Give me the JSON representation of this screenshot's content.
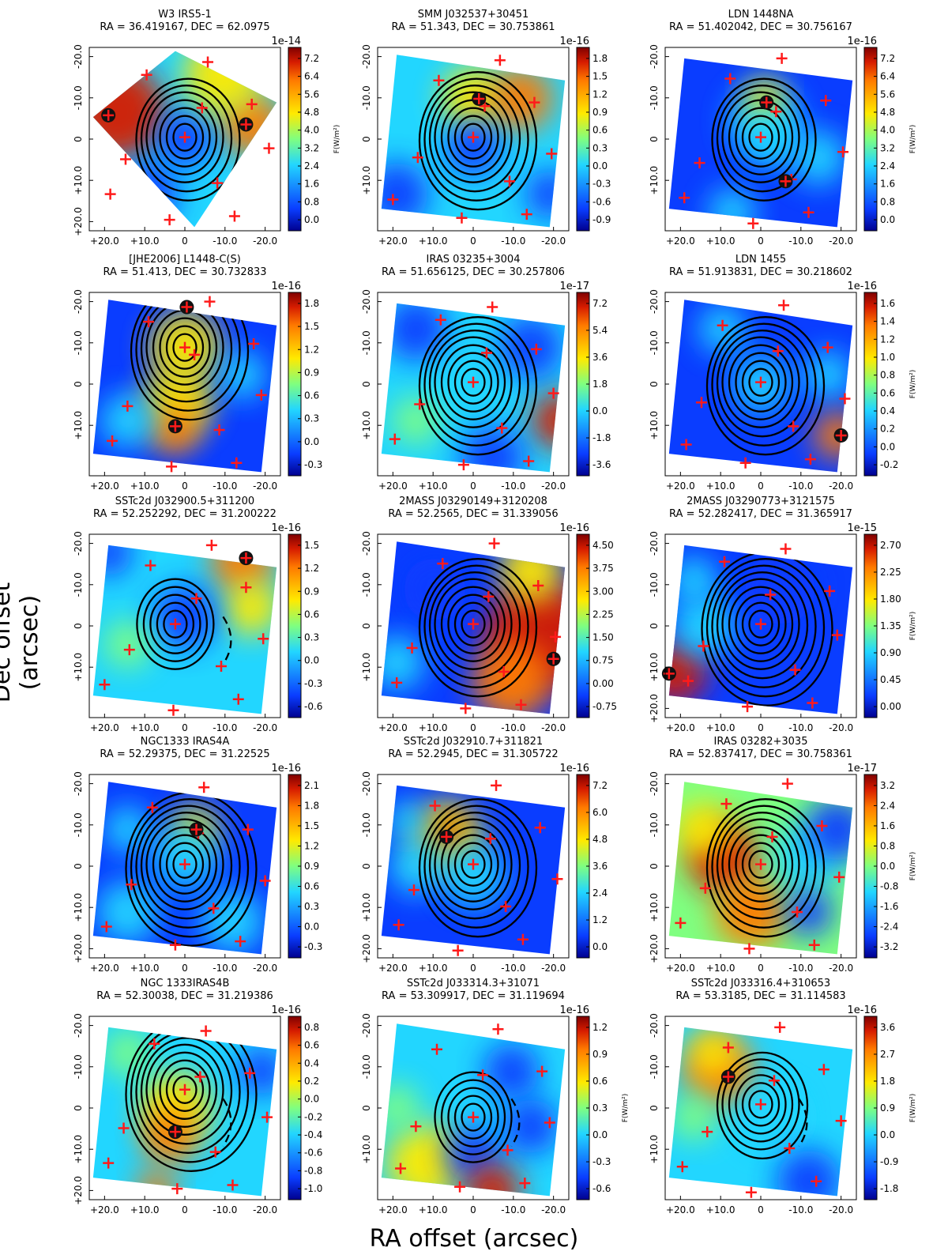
{
  "figure": {
    "xlabel": "RA offset (arcsec)",
    "ylabel": "Dec offset (arcsec)",
    "cbar_unit_label": "F(W/m²)"
  },
  "colors": {
    "blue_dark": "#00008f",
    "blue": "#0a3dff",
    "cyan": "#22d6ff",
    "green": "#7fff80",
    "yellow": "#ffea00",
    "orange": "#ff7a00",
    "red": "#d61c00",
    "red_dark": "#7f0000",
    "marker": "#ff1a1a",
    "contour": "#000000"
  },
  "chart_data": [
    {
      "type": "heatmap",
      "title": "W3 IRS5-1",
      "subtitle": "RA = 36.419167, DEC = 62.0975",
      "scale": "1e-14",
      "cbar_ticks": [
        "0.0",
        "0.8",
        "1.6",
        "2.4",
        "3.2",
        "4.0",
        "4.8",
        "5.6",
        "6.4",
        "7.2"
      ],
      "x_ticks": [
        "+20.0",
        "+10.0",
        "0",
        "-10.0",
        "-20.0"
      ],
      "y_ticks": [
        "-20.0",
        "-10.0",
        "0",
        "+10.0",
        "+20.0"
      ],
      "xlim": [
        25,
        -25
      ],
      "ylim": [
        -25,
        25
      ],
      "cbar_label": "F(W/m²)"
    },
    {
      "type": "heatmap",
      "title": "SMM J032537+30451",
      "subtitle": "RA = 51.343, DEC = 30.753861",
      "scale": "1e-16",
      "cbar_ticks": [
        "-0.9",
        "-0.6",
        "-0.3",
        "0.0",
        "0.3",
        "0.6",
        "0.9",
        "1.2",
        "1.5",
        "1.8"
      ],
      "x_ticks": [
        "+20.0",
        "+10.0",
        "0",
        "-10.0",
        "-20.0"
      ],
      "y_ticks": [
        "-20.0",
        "-10.0",
        "0",
        "+10.0"
      ],
      "xlim": [
        22,
        -22
      ],
      "ylim": [
        -20,
        20
      ],
      "cbar_label": ""
    },
    {
      "type": "heatmap",
      "title": "LDN 1448NA",
      "subtitle": "RA = 51.402042, DEC = 30.756167",
      "scale": "1e-16",
      "cbar_ticks": [
        "0.0",
        "0.8",
        "1.6",
        "2.4",
        "3.2",
        "4.0",
        "4.8",
        "5.6",
        "6.4",
        "7.2"
      ],
      "x_ticks": [
        "+20.0",
        "+10.0",
        "0",
        "-10.0",
        "-20.0"
      ],
      "y_ticks": [
        "-20.0",
        "-10.0",
        "0",
        "+10.0"
      ],
      "xlim": [
        22,
        -22
      ],
      "ylim": [
        -20,
        20
      ],
      "cbar_label": "F(W/m²)"
    },
    {
      "type": "heatmap",
      "title": "[JHE2006] L1448-C(S)",
      "subtitle": "RA = 51.413, DEC = 30.732833",
      "scale": "1e-16",
      "cbar_ticks": [
        "-0.3",
        "0.0",
        "0.3",
        "0.6",
        "0.9",
        "1.2",
        "1.5",
        "1.8"
      ],
      "x_ticks": [
        "+20.0",
        "+10.0",
        "0",
        "-10.0",
        "-20.0"
      ],
      "y_ticks": [
        "-20.0",
        "-10.0",
        "0",
        "+10.0"
      ],
      "xlim": [
        22,
        -22
      ],
      "ylim": [
        -20,
        20
      ],
      "cbar_label": ""
    },
    {
      "type": "heatmap",
      "title": "IRAS 03235+3004",
      "subtitle": "RA = 51.656125, DEC = 30.257806",
      "scale": "1e-17",
      "cbar_ticks": [
        "-3.6",
        "-1.8",
        "0.0",
        "1.8",
        "3.6",
        "5.4",
        "7.2"
      ],
      "x_ticks": [
        "+20.0",
        "+10.0",
        "0",
        "-10.0",
        "-20.0"
      ],
      "y_ticks": [
        "-20.0",
        "-10.0",
        "0",
        "+10.0"
      ],
      "xlim": [
        22,
        -22
      ],
      "ylim": [
        -20,
        20
      ],
      "cbar_label": ""
    },
    {
      "type": "heatmap",
      "title": "LDN 1455",
      "subtitle": "RA = 51.913831, DEC = 30.218602",
      "scale": "1e-16",
      "cbar_ticks": [
        "-0.2",
        "0.0",
        "0.2",
        "0.4",
        "0.6",
        "0.8",
        "1.0",
        "1.2",
        "1.4",
        "1.6"
      ],
      "x_ticks": [
        "+20.0",
        "+10.0",
        "0",
        "-10.0",
        "-20.0"
      ],
      "y_ticks": [
        "-20.0",
        "-10.0",
        "0",
        "+10.0"
      ],
      "xlim": [
        22,
        -22
      ],
      "ylim": [
        -20,
        20
      ],
      "cbar_label": "F(W/m²)"
    },
    {
      "type": "heatmap",
      "title": "SSTc2d J032900.5+311200",
      "subtitle": "RA = 52.252292, DEC = 31.200222",
      "scale": "1e-16",
      "cbar_ticks": [
        "-0.6",
        "-0.3",
        "0.0",
        "0.3",
        "0.6",
        "0.9",
        "1.2",
        "1.5"
      ],
      "x_ticks": [
        "+20.0",
        "+10.0",
        "0",
        "-10.0",
        "-20.0"
      ],
      "y_ticks": [
        "-20.0",
        "-10.0",
        "0",
        "+10.0"
      ],
      "xlim": [
        22,
        -22
      ],
      "ylim": [
        -20,
        20
      ],
      "cbar_label": ""
    },
    {
      "type": "heatmap",
      "title": "2MASS J03290149+3120208",
      "subtitle": "RA = 52.2565, DEC = 31.339056",
      "scale": "1e-16",
      "cbar_ticks": [
        "-0.75",
        "0.00",
        "0.75",
        "1.50",
        "2.25",
        "3.00",
        "3.75",
        "4.50"
      ],
      "x_ticks": [
        "+20.0",
        "+10.0",
        "0",
        "-10.0",
        "-20.0"
      ],
      "y_ticks": [
        "-20.0",
        "-10.0",
        "0",
        "+10.0"
      ],
      "xlim": [
        22,
        -22
      ],
      "ylim": [
        -20,
        20
      ],
      "cbar_label": ""
    },
    {
      "type": "heatmap",
      "title": "2MASS J03290773+3121575",
      "subtitle": "RA = 52.282417, DEC = 31.365917",
      "scale": "1e-15",
      "cbar_ticks": [
        "0.00",
        "0.45",
        "0.90",
        "1.35",
        "1.80",
        "2.25",
        "2.70"
      ],
      "x_ticks": [
        "+20.0",
        "+10.0",
        "0",
        "-10.0",
        "-20.0"
      ],
      "y_ticks": [
        "-20.0",
        "-10.0",
        "0",
        "+10.0",
        "+20.0"
      ],
      "xlim": [
        25,
        -25
      ],
      "ylim": [
        -25,
        25
      ],
      "cbar_label": "F(W/m²)"
    },
    {
      "type": "heatmap",
      "title": "NGC1333 IRAS4A",
      "subtitle": "RA = 52.29375, DEC = 31.22525",
      "scale": "1e-16",
      "cbar_ticks": [
        "-0.3",
        "0.0",
        "0.3",
        "0.6",
        "0.9",
        "1.2",
        "1.5",
        "1.8",
        "2.1"
      ],
      "x_ticks": [
        "+20.0",
        "+10.0",
        "0",
        "-10.0",
        "-20.0"
      ],
      "y_ticks": [
        "-20.0",
        "-10.0",
        "0",
        "+10.0",
        "+20.0"
      ],
      "xlim": [
        22,
        -22
      ],
      "ylim": [
        -22,
        22
      ],
      "cbar_label": ""
    },
    {
      "type": "heatmap",
      "title": "SSTc2d J032910.7+311821",
      "subtitle": "RA = 52.2945, DEC = 31.305722",
      "scale": "1e-16",
      "cbar_ticks": [
        "0.0",
        "1.2",
        "2.4",
        "3.6",
        "4.8",
        "6.0",
        "7.2"
      ],
      "x_ticks": [
        "+20.0",
        "+10.0",
        "0",
        "-10.0",
        "-20.0"
      ],
      "y_ticks": [
        "-20.0",
        "-10.0",
        "0",
        "+10.0",
        "+20.0"
      ],
      "xlim": [
        22,
        -22
      ],
      "ylim": [
        -22,
        22
      ],
      "cbar_label": ""
    },
    {
      "type": "heatmap",
      "title": "IRAS 03282+3035",
      "subtitle": "RA = 52.837417, DEC = 30.758361",
      "scale": "1e-17",
      "cbar_ticks": [
        "-3.2",
        "-2.4",
        "-1.6",
        "-0.8",
        "0.0",
        "0.8",
        "1.6",
        "2.4",
        "3.2"
      ],
      "x_ticks": [
        "+20.0",
        "+10.0",
        "0",
        "-10.0",
        "-20.0"
      ],
      "y_ticks": [
        "-20.0",
        "-10.0",
        "0",
        "+10.0",
        "+20.0"
      ],
      "xlim": [
        22,
        -22
      ],
      "ylim": [
        -22,
        22
      ],
      "cbar_label": "F(W/m²)"
    },
    {
      "type": "heatmap",
      "title": "NGC 1333IRAS4B",
      "subtitle": "RA = 52.30038, DEC = 31.219386",
      "scale": "1e-16",
      "cbar_ticks": [
        "-1.0",
        "-0.8",
        "-0.6",
        "-0.4",
        "-0.2",
        "0.0",
        "0.2",
        "0.4",
        "0.6",
        "0.8"
      ],
      "x_ticks": [
        "+20.0",
        "+10.0",
        "0",
        "-10.0",
        "-20.0"
      ],
      "y_ticks": [
        "-20.0",
        "-10.0",
        "0",
        "+10.0",
        "+20.0"
      ],
      "xlim": [
        22,
        -22
      ],
      "ylim": [
        -22,
        22
      ],
      "cbar_label": ""
    },
    {
      "type": "heatmap",
      "title": "SSTc2d J033314.3+31071",
      "subtitle": "RA = 53.309917, DEC = 31.119694",
      "scale": "1e-16",
      "cbar_ticks": [
        "-0.6",
        "-0.3",
        "0.0",
        "0.3",
        "0.6",
        "0.9",
        "1.2"
      ],
      "x_ticks": [
        "+20.0",
        "+10.0",
        "0",
        "-10.0",
        "-20.0"
      ],
      "y_ticks": [
        "-20.0",
        "-10.0",
        "0",
        "+10.0"
      ],
      "xlim": [
        22,
        -22
      ],
      "ylim": [
        -20,
        20
      ],
      "cbar_label": "F(W/m²)"
    },
    {
      "type": "heatmap",
      "title": "SSTc2d J033316.4+310653",
      "subtitle": "RA = 53.3185, DEC = 31.114583",
      "scale": "1e-16",
      "cbar_ticks": [
        "-1.8",
        "-0.9",
        "0.0",
        "0.9",
        "1.8",
        "2.7",
        "3.6"
      ],
      "x_ticks": [
        "+20.0",
        "+10.0",
        "0",
        "-10.0",
        "-20.0"
      ],
      "y_ticks": [
        "-20.0",
        "-10.0",
        "0",
        "+10.0"
      ],
      "xlim": [
        22,
        -22
      ],
      "ylim": [
        -20,
        20
      ],
      "cbar_label": "F(W/m²)"
    }
  ]
}
